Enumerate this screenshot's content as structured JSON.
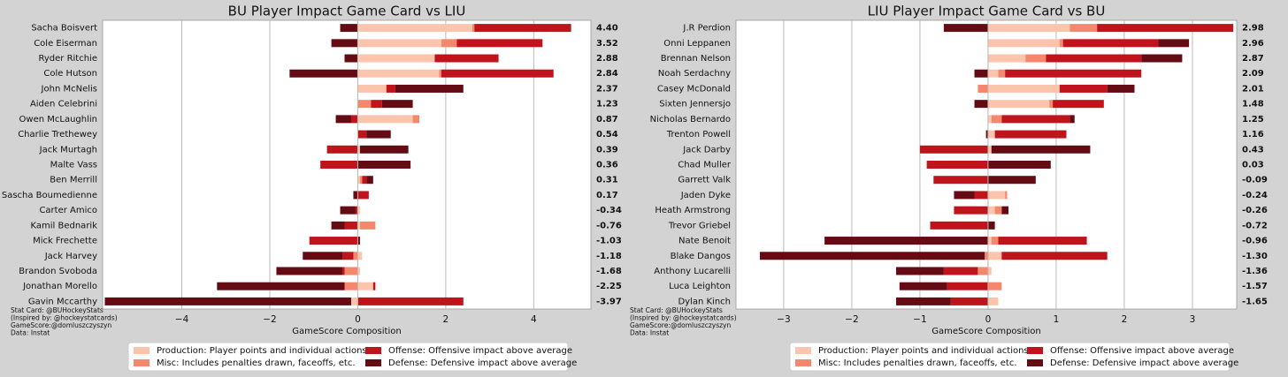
{
  "chart_data": [
    {
      "type": "bar",
      "orientation": "horizontal",
      "title": "BU Player Impact Game Card vs LIU",
      "categories": [
        "Sacha Boisvert",
        "Cole Eiserman",
        "Ryder Ritchie",
        "Cole Hutson",
        "John McNelis",
        "Aiden Celebrini",
        "Owen McLaughlin",
        "Charlie Trethewey",
        "Jack Murtagh",
        "Malte Vass",
        "Ben Merrill",
        "Sascha Boumedienne",
        "Carter Amico",
        "Kamil Bednarik",
        "Mick Frechette",
        "Jack Harvey",
        "Brandon Svoboda",
        "Jonathan Morello",
        "Gavin Mccarthy"
      ],
      "series": [
        {
          "name": "Production: Player points and individual actions",
          "color": "#fbc5ad",
          "values": [
            2.6,
            1.9,
            1.75,
            1.85,
            0.65,
            0,
            1.25,
            0,
            0.05,
            0,
            0.05,
            0,
            0.05,
            0.05,
            0,
            0.1,
            0.05,
            0.35,
            -0.15
          ]
        },
        {
          "name": "Misc: Includes penalties drawn, faceoffs, etc.",
          "color": "#f4876c",
          "values": [
            0.05,
            0.35,
            0,
            0.05,
            0,
            0.3,
            0.15,
            0,
            0,
            0,
            0.05,
            0,
            0,
            0.35,
            0,
            -0.1,
            -0.3,
            -0.3,
            0
          ]
        },
        {
          "name": "Offense: Offensive impact above average",
          "color": "#c0141c",
          "values": [
            2.2,
            1.95,
            1.45,
            2.55,
            0.2,
            0.25,
            -0.15,
            0.2,
            -0.7,
            -0.85,
            0.1,
            0.25,
            -0.05,
            -0.3,
            -1.1,
            -0.25,
            -0.05,
            0.05,
            2.4
          ]
        },
        {
          "name": "Defense: Defensive impact above average",
          "color": "#640b14",
          "values": [
            -0.4,
            -0.6,
            -0.3,
            -1.55,
            1.55,
            0.7,
            -0.35,
            0.55,
            1.1,
            1.2,
            0.15,
            -0.1,
            -0.35,
            -0.3,
            0.05,
            -0.9,
            -1.5,
            -2.9,
            -5.6
          ]
        }
      ],
      "totals": [
        4.4,
        3.52,
        2.88,
        2.84,
        2.37,
        1.23,
        0.87,
        0.54,
        0.39,
        0.36,
        0.31,
        0.17,
        -0.34,
        -0.76,
        -1.03,
        -1.18,
        -1.68,
        -2.25,
        -3.97
      ],
      "total_labels": [
        "4.40",
        "3.52",
        "2.88",
        "2.84",
        "2.37",
        "1.23",
        "0.87",
        "0.54",
        "0.39",
        "0.36",
        "0.31",
        "0.17",
        "-0.34",
        "-0.76",
        "-1.03",
        "-1.18",
        "-1.68",
        "-2.25",
        "-3.97"
      ],
      "xlabel": "GameScore Composition",
      "xlim": [
        -5.8,
        5.3
      ],
      "xticks": [
        {
          "value": -4,
          "label": "−4"
        },
        {
          "value": -2,
          "label": "−2"
        },
        0,
        2,
        4
      ],
      "grid": true,
      "footer": [
        "Stat Card: @BUHockeyStats",
        "(Inspired by: @hockeystatcards)",
        "GameScore:@domluszczyszyn",
        "Data: Instat"
      ]
    },
    {
      "type": "bar",
      "orientation": "horizontal",
      "title": "LIU Player Impact Game Card vs BU",
      "categories": [
        "J.R Perdion",
        "Onni Leppanen",
        "Brennan Nelson",
        "Noah Serdachny",
        "Casey McDonald",
        "Sixten Jennersjo",
        "Nicholas Bernardo",
        "Trenton Powell",
        "Jack Darby",
        "Chad Muller",
        "Garrett Valk",
        "Jaden Dyke",
        "Heath Armstrong",
        "Trevor Griebel",
        "Nate Benoit",
        "Blake Dangos",
        "Anthony Lucarelli",
        "Luca Leighton",
        "Dylan Kinch"
      ],
      "series": [
        {
          "name": "Production: Player points and individual actions",
          "color": "#fbc5ad",
          "values": [
            1.2,
            1.05,
            0.55,
            0.15,
            1.05,
            0.9,
            0.05,
            0.1,
            0.05,
            0,
            0,
            0.25,
            0.1,
            0,
            0.05,
            0.2,
            0.05,
            0,
            0.15
          ]
        },
        {
          "name": "Misc: Includes penalties drawn, faceoffs, etc.",
          "color": "#f4876c",
          "values": [
            0.4,
            0.05,
            0.3,
            0.1,
            -0.15,
            0.05,
            0.15,
            0,
            0,
            0,
            0,
            0.03,
            0.1,
            0,
            0.1,
            -0.05,
            -0.15,
            0.2,
            0
          ]
        },
        {
          "name": "Offense: Offensive impact above average",
          "color": "#c0141c",
          "values": [
            2.0,
            1.4,
            1.4,
            2.0,
            0.7,
            0.75,
            1.0,
            1.05,
            -1.0,
            -0.9,
            -0.8,
            -0.2,
            -0.5,
            -0.85,
            1.3,
            1.55,
            -0.5,
            -0.6,
            -0.55
          ]
        },
        {
          "name": "Defense: Defensive impact above average",
          "color": "#640b14",
          "values": [
            -0.65,
            0.45,
            0.6,
            -0.2,
            0.4,
            -0.2,
            0.07,
            -0.03,
            1.45,
            0.92,
            0.7,
            -0.3,
            0.1,
            0.1,
            -2.4,
            -3.3,
            -0.7,
            -0.7,
            -0.8
          ]
        }
      ],
      "totals": [
        2.98,
        2.96,
        2.87,
        2.09,
        2.01,
        1.48,
        1.25,
        1.16,
        0.43,
        0.03,
        -0.09,
        -0.24,
        -0.26,
        -0.72,
        -0.96,
        -1.3,
        -1.36,
        -1.57,
        -1.65
      ],
      "total_labels": [
        "2.98",
        "2.96",
        "2.87",
        "2.09",
        "2.01",
        "1.48",
        "1.25",
        "1.16",
        "0.43",
        "0.03",
        "-0.09",
        "-0.24",
        "-0.26",
        "-0.72",
        "-0.96",
        "-1.30",
        "-1.36",
        "-1.57",
        "-1.65"
      ],
      "xlabel": "GameScore Composition",
      "xlim": [
        -3.7,
        3.65
      ],
      "xticks": [
        {
          "value": -3,
          "label": "−3"
        },
        {
          "value": -2,
          "label": "−2"
        },
        {
          "value": -1,
          "label": "−1"
        },
        0,
        1,
        2,
        3
      ],
      "grid": true,
      "footer": [
        "Stat Card: @BUHockeyStats",
        "(Inspired by: @hockeystatcards)",
        "GameScore:@domluszczyszyn",
        "Data: Instat"
      ]
    }
  ]
}
